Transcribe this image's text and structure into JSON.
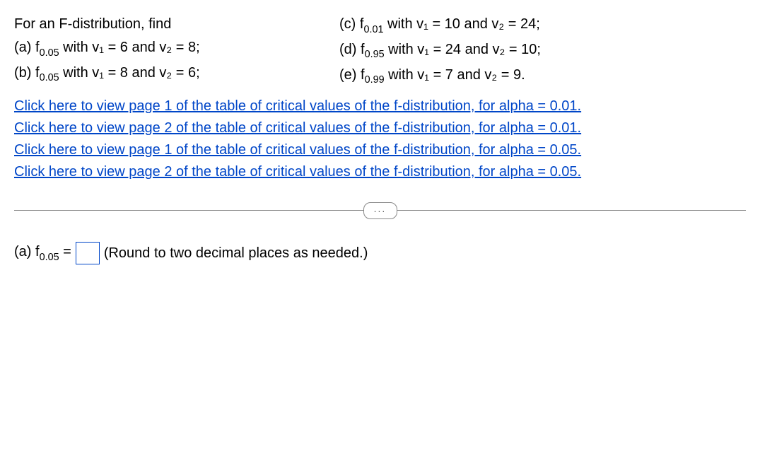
{
  "problem": {
    "intro": "For an F-distribution, find",
    "parts": {
      "a": {
        "label": "(a) f",
        "sub": "0.05",
        "text": " with v₁ = 6 and v₂ = 8;"
      },
      "b": {
        "label": "(b) f",
        "sub": "0.05",
        "text": " with v₁ = 8 and v₂ = 6;"
      },
      "c": {
        "label": "(c) f",
        "sub": "0.01",
        "text": " with v₁ = 10 and v₂ = 24;"
      },
      "d": {
        "label": "(d) f",
        "sub": "0.95",
        "text": " with v₁ = 24 and v₂ = 10;"
      },
      "e": {
        "label": "(e) f",
        "sub": "0.99",
        "text": " with v₁ = 7 and v₂ = 9."
      }
    }
  },
  "links": {
    "l1": "Click here to view page 1 of the table of critical values of the f-distribution, for alpha = 0.01.",
    "l2": "Click here to view page 2 of the table of critical values of the f-distribution, for alpha = 0.01.",
    "l3": "Click here to view page 1 of the table of critical values of the f-distribution, for alpha = 0.05.",
    "l4": "Click here to view page 2 of the table of critical values of the f-distribution, for alpha = 0.05."
  },
  "more": "...",
  "answer": {
    "label": "(a) f",
    "sub": "0.05",
    "eq": " = ",
    "hint": "(Round to two decimal places as needed.)"
  }
}
